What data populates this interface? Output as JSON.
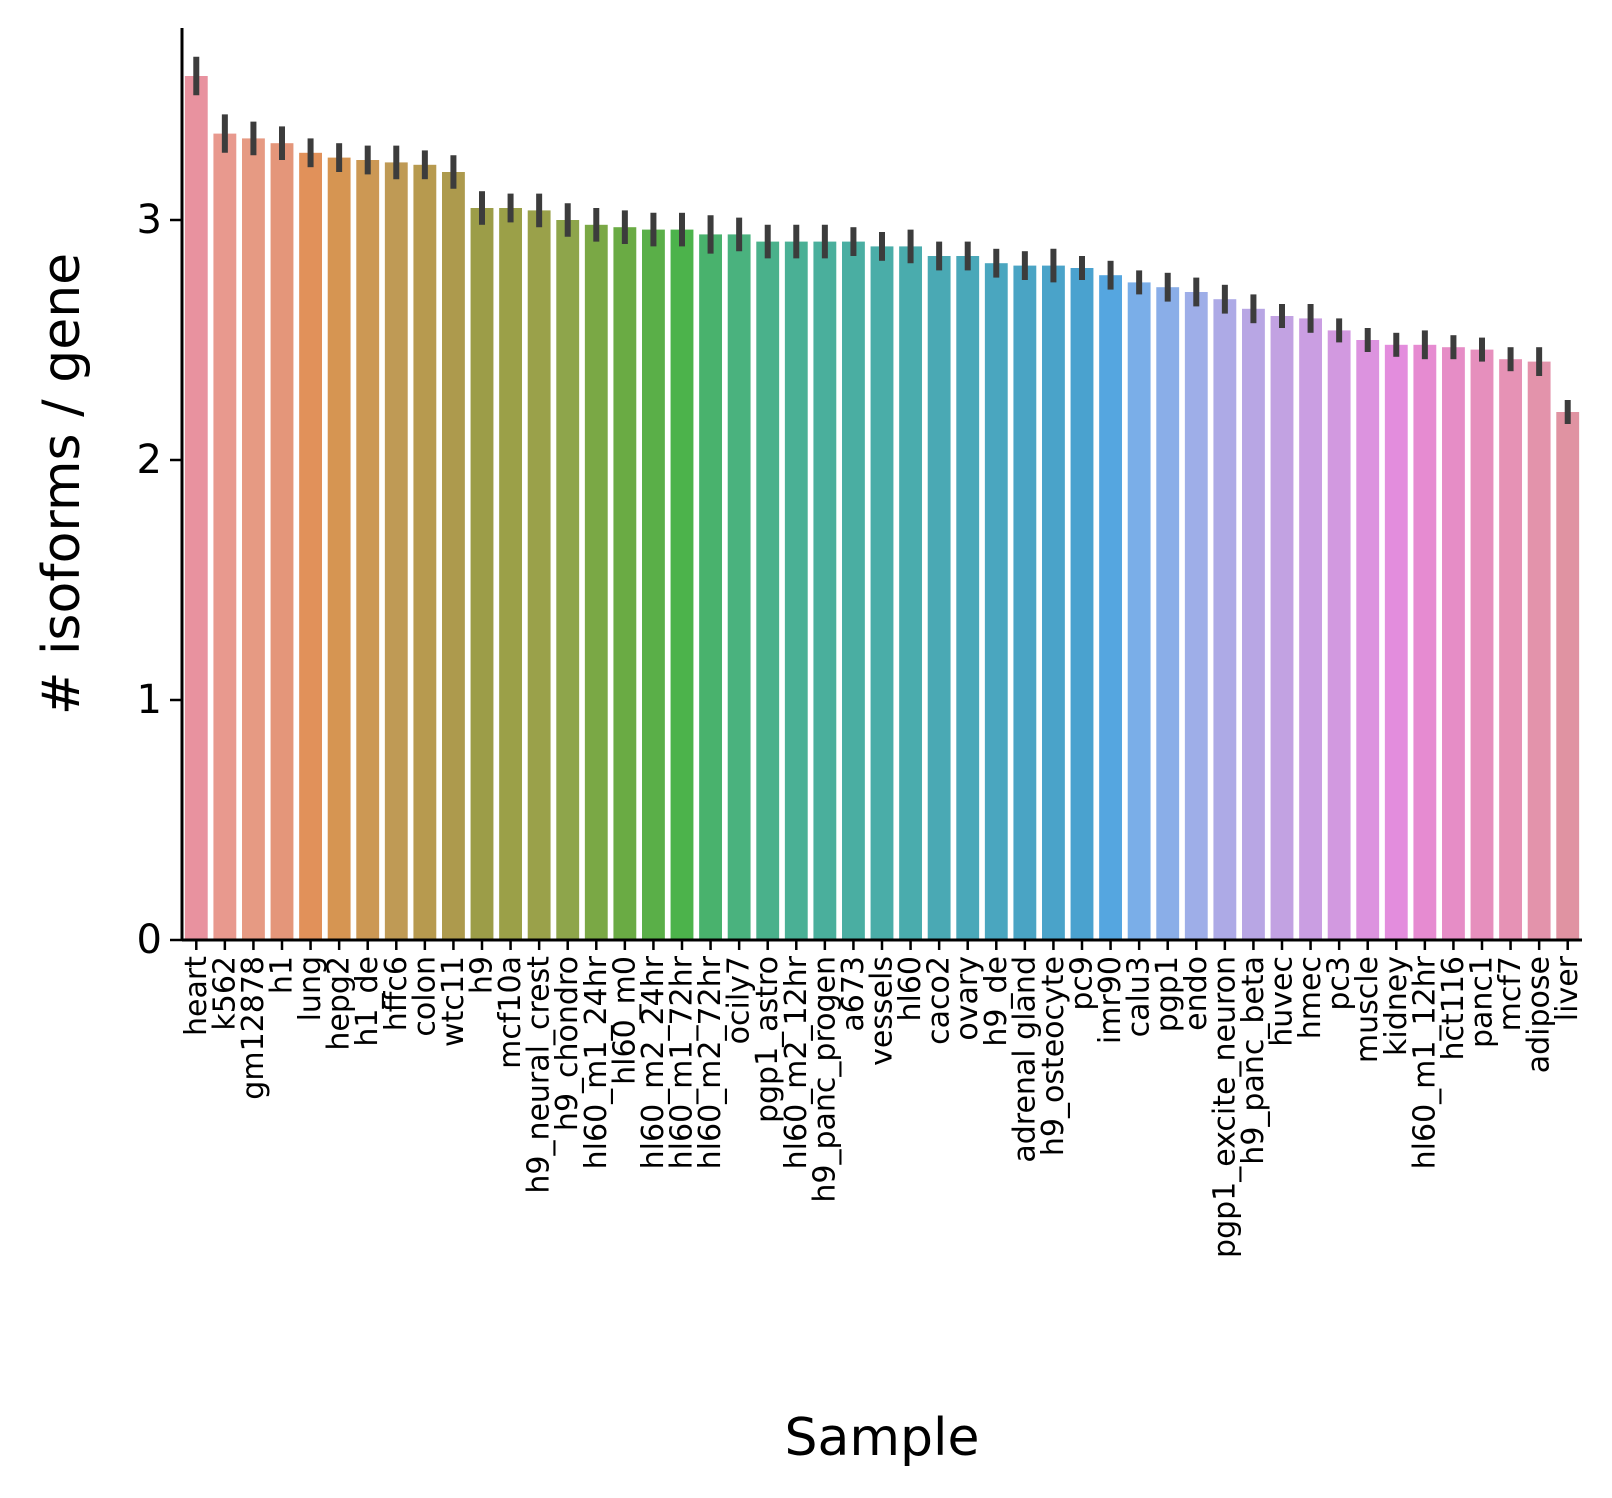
{
  "chart_data": {
    "type": "bar",
    "xlabel": "Sample",
    "ylabel": "# isoforms / gene",
    "ylim": [
      0,
      3.8
    ],
    "yticks": [
      0,
      1,
      2,
      3
    ],
    "grid": false,
    "legend": "none",
    "categories": [
      "heart",
      "k562",
      "gm12878",
      "h1",
      "lung",
      "hepg2",
      "h1_de",
      "hffc6",
      "colon",
      "wtc11",
      "h9",
      "mcf10a",
      "h9_neural_crest",
      "h9_chondro",
      "hl60_m1_24hr",
      "hl60_m0",
      "hl60_m2_24hr",
      "hl60_m1_72hr",
      "hl60_m2_72hr",
      "ocily7",
      "pgp1_astro",
      "hl60_m2_12hr",
      "h9_panc_progen",
      "a673",
      "vessels",
      "hl60",
      "caco2",
      "ovary",
      "h9_de",
      "adrenal gland",
      "h9_osteocyte",
      "pc9",
      "imr90",
      "calu3",
      "pgp1",
      "endo",
      "pgp1_excite_neuron",
      "h9_panc_beta",
      "huvec",
      "hmec",
      "pc3",
      "muscle",
      "kidney",
      "hl60_m1_12hr",
      "hct116",
      "panc1",
      "mcf7",
      "adipose",
      "liver"
    ],
    "values": [
      3.6,
      3.36,
      3.34,
      3.32,
      3.28,
      3.26,
      3.25,
      3.24,
      3.23,
      3.2,
      3.05,
      3.05,
      3.04,
      3.0,
      2.98,
      2.97,
      2.96,
      2.96,
      2.94,
      2.94,
      2.91,
      2.91,
      2.91,
      2.91,
      2.89,
      2.89,
      2.85,
      2.85,
      2.82,
      2.81,
      2.81,
      2.8,
      2.77,
      2.74,
      2.72,
      2.7,
      2.67,
      2.63,
      2.6,
      2.59,
      2.54,
      2.5,
      2.48,
      2.48,
      2.47,
      2.46,
      2.42,
      2.41,
      2.2
    ],
    "errors": [
      0.08,
      0.08,
      0.07,
      0.07,
      0.06,
      0.06,
      0.06,
      0.07,
      0.06,
      0.07,
      0.07,
      0.06,
      0.07,
      0.07,
      0.07,
      0.07,
      0.07,
      0.07,
      0.08,
      0.07,
      0.07,
      0.07,
      0.07,
      0.06,
      0.06,
      0.07,
      0.06,
      0.06,
      0.06,
      0.06,
      0.07,
      0.05,
      0.06,
      0.05,
      0.06,
      0.06,
      0.06,
      0.06,
      0.05,
      0.06,
      0.05,
      0.05,
      0.05,
      0.06,
      0.05,
      0.05,
      0.05,
      0.06,
      0.05
    ],
    "colors": [
      "#e8929f",
      "#e8998e",
      "#e69a83",
      "#e4967a",
      "#e1915a",
      "#d69552",
      "#cc9854",
      "#bf9a55",
      "#b79a4f",
      "#ad9a4d",
      "#9c9d48",
      "#9ba048",
      "#9aa14a",
      "#8ea54b",
      "#7aa845",
      "#6aab44",
      "#5aaf48",
      "#4cb34b",
      "#49b26d",
      "#4ab27e",
      "#4ab18b",
      "#4ab095",
      "#4aaf9c",
      "#4aaea2",
      "#4aada8",
      "#4aacad",
      "#4aa9b4",
      "#4aa8b9",
      "#4aa6bf",
      "#4aa4c4",
      "#4aa3c9",
      "#4aa2cf",
      "#55a6e0",
      "#7aaee8",
      "#8aaee8",
      "#9eaee8",
      "#adaae6",
      "#b8a6e4",
      "#c2a2e2",
      "#ca9ee2",
      "#d299e0",
      "#dc93df",
      "#e38ddd",
      "#e68bd1",
      "#e68dc6",
      "#e68fbd",
      "#e692b5",
      "#e393ab",
      "#e093a2"
    ],
    "errorbar_color": "#3c3c3c"
  }
}
